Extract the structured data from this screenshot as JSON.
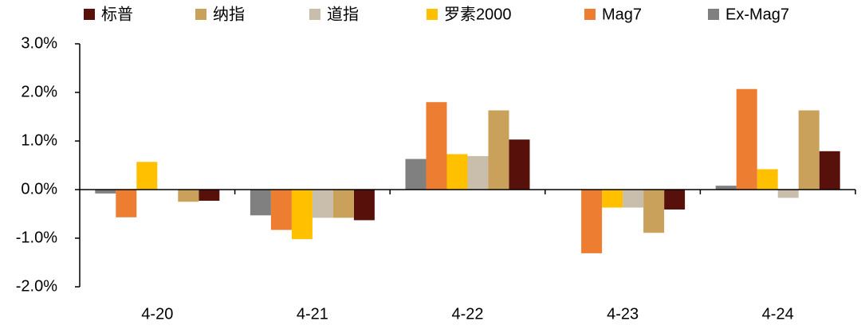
{
  "chart_data": {
    "type": "bar",
    "categories": [
      "4-20",
      "4-21",
      "4-22",
      "4-23",
      "4-24"
    ],
    "series": [
      {
        "name": "标普",
        "color": "#58100b",
        "values": [
          -0.23,
          -0.63,
          1.03,
          -0.41,
          0.79
        ]
      },
      {
        "name": "纳指",
        "color": "#c9a15b",
        "values": [
          -0.25,
          -0.58,
          1.63,
          -0.89,
          1.63
        ]
      },
      {
        "name": "道指",
        "color": "#c9bdac",
        "values": [
          0,
          -0.58,
          0.69,
          -0.37,
          -0.17
        ]
      },
      {
        "name": "罗素2000",
        "color": "#ffc000",
        "values": [
          0.57,
          -1.02,
          0.73,
          -0.37,
          0.42
        ]
      },
      {
        "name": "Mag7",
        "color": "#ed7d31",
        "values": [
          -0.57,
          -0.83,
          1.8,
          -1.31,
          2.07
        ]
      },
      {
        "name": "Ex-Mag7",
        "color": "#808080",
        "values": [
          -0.08,
          -0.53,
          0.63,
          0,
          0.08
        ]
      }
    ],
    "ylim": [
      -2,
      3
    ],
    "yticks": [
      {
        "value": -2,
        "label": "-2.0%"
      },
      {
        "value": -1,
        "label": "-1.0%"
      },
      {
        "value": 0,
        "label": "0.0%"
      },
      {
        "value": 1,
        "label": "1.0%"
      },
      {
        "value": 2,
        "label": "2.0%"
      },
      {
        "value": 3,
        "label": "3.0%"
      }
    ],
    "legend": "top"
  }
}
